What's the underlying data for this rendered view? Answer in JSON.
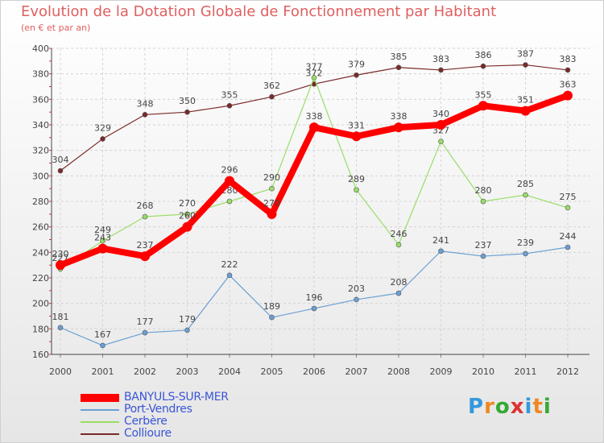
{
  "chart_data": {
    "type": "line",
    "title": "Evolution de la Dotation Globale de Fonctionnement par Habitant",
    "subtitle": "(en € et par an)",
    "x": [
      "2000",
      "2001",
      "2002",
      "2003",
      "2004",
      "2005",
      "2006",
      "2007",
      "2008",
      "2009",
      "2010",
      "2011",
      "2012"
    ],
    "ylim": [
      160,
      400
    ],
    "yticks": [
      160,
      180,
      200,
      220,
      240,
      260,
      280,
      300,
      320,
      340,
      360,
      380,
      400
    ],
    "grid": true,
    "legend_position": "bottom-left",
    "series": [
      {
        "name": "BANYULS-SUR-MER",
        "color": "#ff0000",
        "values": [
          230,
          243,
          237,
          260,
          296,
          270,
          338,
          331,
          338,
          340,
          355,
          351,
          363
        ]
      },
      {
        "name": "Port-Vendres",
        "color": "#6a9fd4",
        "values": [
          181,
          167,
          177,
          179,
          222,
          189,
          196,
          203,
          208,
          241,
          237,
          239,
          244
        ]
      },
      {
        "name": "Cerbère",
        "color": "#99dd66",
        "values": [
          227,
          249,
          268,
          270,
          280,
          290,
          377,
          289,
          246,
          327,
          280,
          285,
          275
        ]
      },
      {
        "name": "Collioure",
        "color": "#7a2a2a",
        "values": [
          304,
          329,
          348,
          350,
          355,
          362,
          372,
          379,
          385,
          383,
          386,
          387,
          383
        ]
      }
    ]
  },
  "logo": {
    "text": "Proxiti",
    "letters": [
      "P",
      "r",
      "o",
      "x",
      "i",
      "t",
      "i"
    ],
    "colors": [
      "#3399dd",
      "#ee8822",
      "#33aa33",
      "#dd3333",
      "#3399dd",
      "#ee8822",
      "#33aa33"
    ]
  }
}
